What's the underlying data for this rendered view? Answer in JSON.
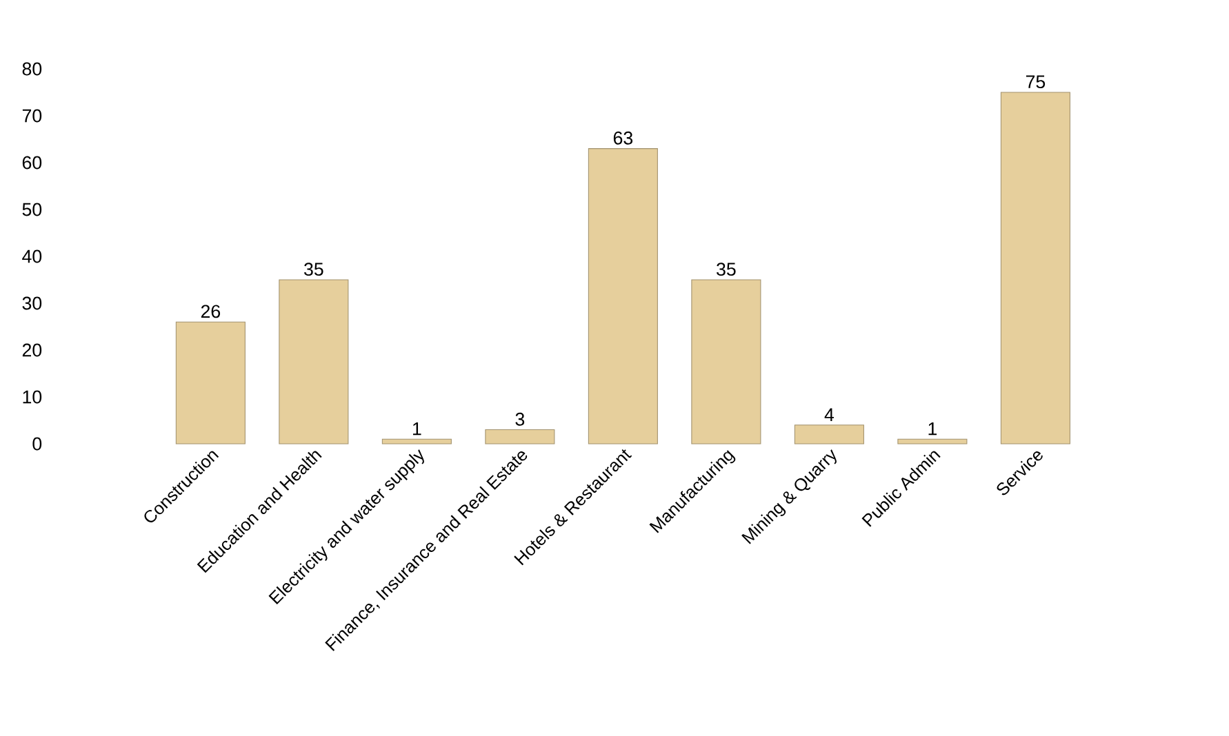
{
  "chart_data": {
    "type": "bar",
    "categories": [
      "Construction",
      "Education and Health",
      "Electricity and water supply",
      "Finance, Insurance and Real Estate",
      "Hotels & Restaurant",
      "Manufacturing",
      "Mining & Quarry",
      "Public Admin",
      "Service"
    ],
    "values": [
      26,
      35,
      1,
      3,
      63,
      35,
      4,
      1,
      75
    ],
    "color": "#e6cf9c",
    "data_labels": true,
    "grid": false,
    "ylim": [
      0,
      80
    ],
    "yticks": [
      0,
      10,
      20,
      30,
      40,
      50,
      60,
      70,
      80
    ]
  }
}
